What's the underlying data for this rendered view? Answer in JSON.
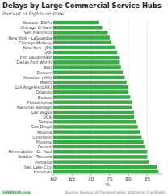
{
  "chart_data": {
    "type": "bar",
    "orientation": "horizontal",
    "title": "Delays by Large Commercial Service Hubs",
    "subtitle": "Percent of flights on-time",
    "xlabel": "%",
    "annotations": [
      "GWWash.org",
      "Source: Bureau of Transportation Statistics (TranStats)"
    ],
    "color": "#3aaa44",
    "grid": true,
    "xlim": [
      60,
      89
    ],
    "xticks": [
      60,
      65,
      70,
      75,
      80,
      85
    ],
    "categories": [
      "Newark (EWR)",
      "Chicago O'Hare",
      "San Francisco",
      "New York - LaGuardia",
      "Chicago Midway",
      "New York - JFK",
      "IAD",
      "Fort Lauderdale",
      "Dallas-Fort Worth",
      "BWI",
      "Denver",
      "Houston (IAH)",
      "Miami",
      "Los Angeles (LAX)",
      "Orlando",
      "Boston",
      "Philadelphia",
      "National Average",
      "Las Vegas",
      "DCA",
      "Tampa",
      "San Diego",
      "Atlanta",
      "Charlotte",
      "Phoenix",
      "Detroit",
      "Minneapolis - St. Paul",
      "Seattle - Tacoma",
      "Portland",
      "Salt Lake City",
      "Honolulu"
    ],
    "values": [
      72.0,
      73.0,
      74.5,
      75.0,
      75.5,
      76.5,
      77.0,
      77.5,
      77.5,
      78.0,
      78.5,
      79.0,
      79.5,
      80.0,
      80.0,
      80.5,
      81.0,
      81.0,
      81.5,
      81.5,
      82.0,
      82.5,
      83.0,
      83.5,
      84.0,
      84.5,
      85.0,
      85.0,
      85.5,
      87.5,
      88.0
    ]
  }
}
